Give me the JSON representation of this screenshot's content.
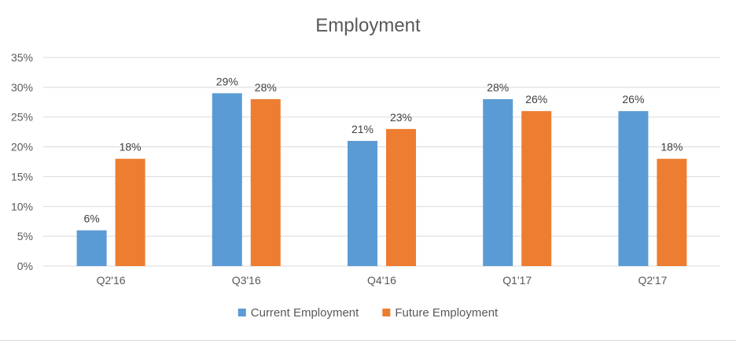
{
  "chart_data": {
    "type": "bar",
    "title": "Employment",
    "categories": [
      "Q2'16",
      "Q3'16",
      "Q4'16",
      "Q1'17",
      "Q2'17"
    ],
    "series": [
      {
        "name": "Current Employment",
        "values": [
          6,
          29,
          21,
          28,
          26
        ],
        "labels": [
          "6%",
          "29%",
          "21%",
          "28%",
          "26%"
        ],
        "color": "#5b9bd5"
      },
      {
        "name": "Future Employment",
        "values": [
          18,
          28,
          23,
          26,
          18
        ],
        "labels": [
          "18%",
          "28%",
          "23%",
          "26%",
          "18%"
        ],
        "color": "#ed7d31"
      }
    ],
    "ylim": [
      0,
      35
    ],
    "yticks": [
      0,
      5,
      10,
      15,
      20,
      25,
      30,
      35
    ],
    "ytick_labels": [
      "0%",
      "5%",
      "10%",
      "15%",
      "20%",
      "25%",
      "30%",
      "35%"
    ],
    "xlabel": "",
    "ylabel": "",
    "grid": true,
    "legend_position": "bottom"
  }
}
